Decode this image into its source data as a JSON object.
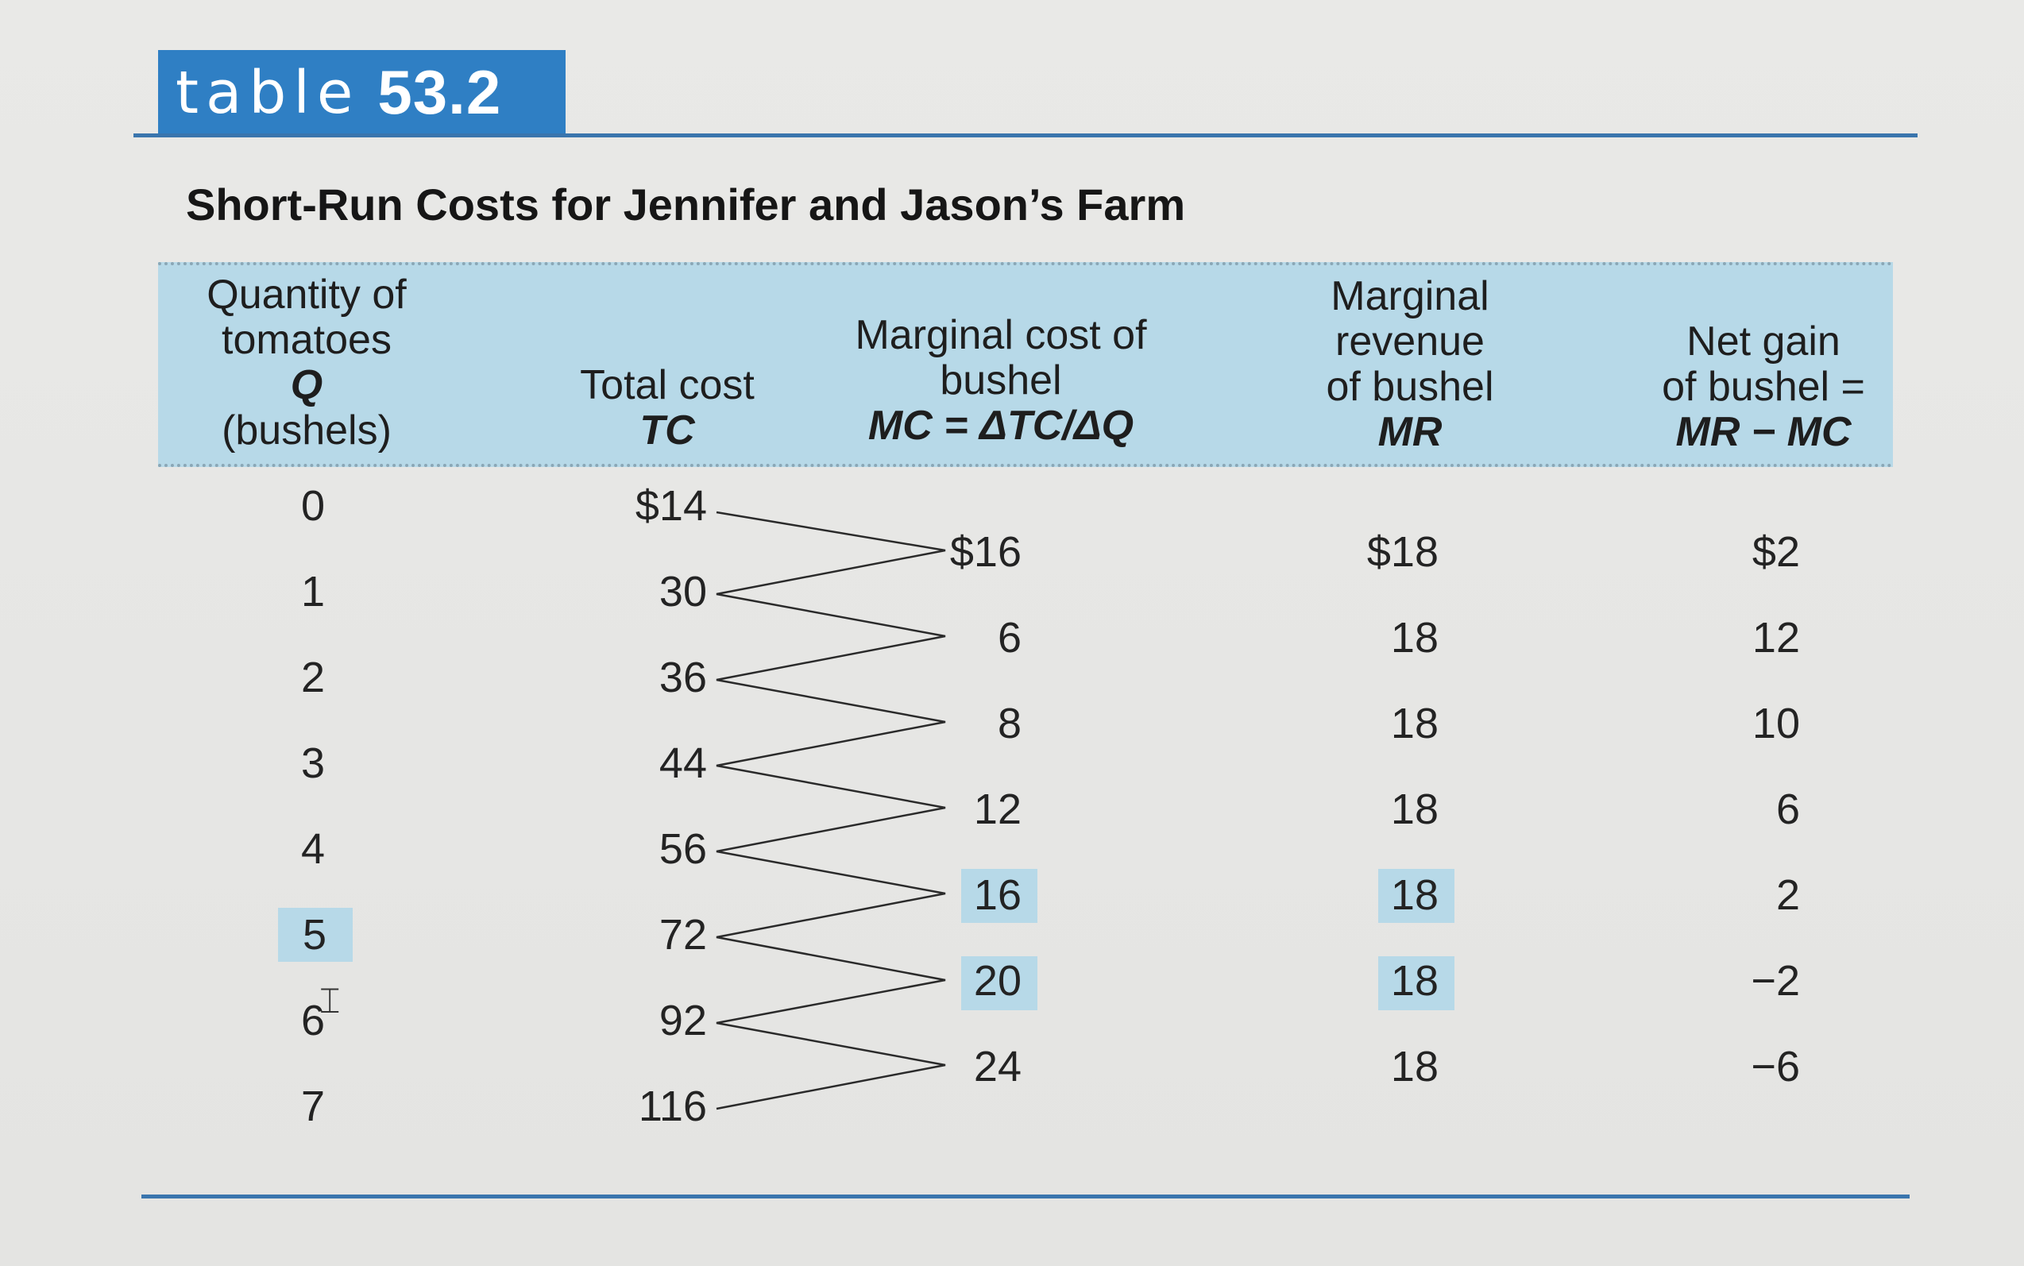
{
  "tag": {
    "word": "table",
    "number": "53.2"
  },
  "title": "Short-Run Costs for Jennifer and Jason’s Farm",
  "headers": {
    "q": [
      "Quantity of",
      "tomatoes",
      "Q",
      "(bushels)"
    ],
    "tc": [
      "Total cost",
      "TC"
    ],
    "mc": [
      "Marginal cost of",
      "bushel",
      "MC = ΔTC/ΔQ"
    ],
    "mr": [
      "Marginal",
      "revenue",
      "of bushel",
      "MR"
    ],
    "net": [
      "Net gain",
      "of bushel =",
      "MR − MC"
    ]
  },
  "quantity": [
    "0",
    "1",
    "2",
    "3",
    "4",
    "5",
    "6",
    "7"
  ],
  "total_cost": [
    "$14",
    "30",
    "36",
    "44",
    "56",
    "72",
    "92",
    "116"
  ],
  "marginal_cost": [
    "$16",
    "6",
    "8",
    "12",
    "16",
    "20",
    "24"
  ],
  "marginal_revenue": [
    "$18",
    "18",
    "18",
    "18",
    "18",
    "18",
    "18"
  ],
  "net_gain": [
    "$2",
    "12",
    "10",
    "6",
    "2",
    "−2",
    "−6"
  ],
  "highlighted": {
    "quantity_row": 5,
    "mc_rows": [
      4,
      5
    ],
    "mr_rows": [
      4,
      5
    ]
  },
  "colors": {
    "accent": "#2f7fc4",
    "header_bg": "#b7d9e8",
    "rule": "#3a75ad"
  }
}
